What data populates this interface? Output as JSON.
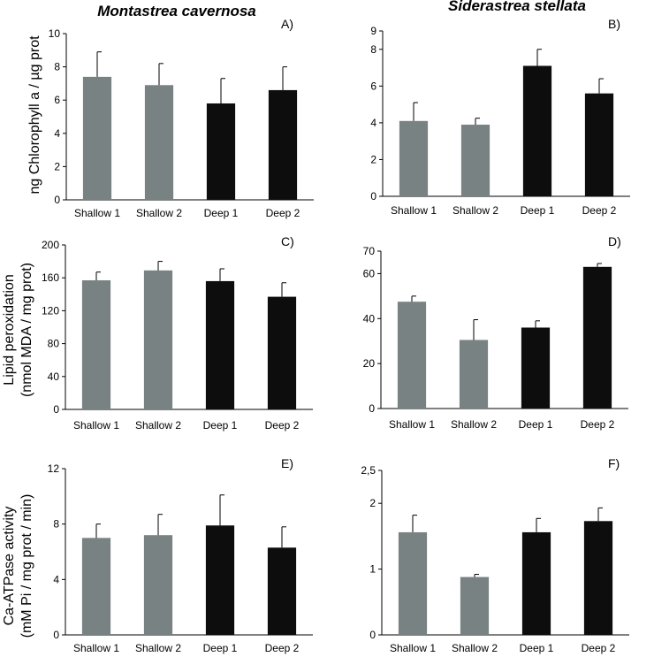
{
  "column_titles": [
    "Montastrea cavernosa",
    "Siderastrea stellata"
  ],
  "row_ylabels": [
    [
      "ng Chlorophyll a / µg prot"
    ],
    [
      "Lipid peroxidation",
      "(nmol MDA / mg prot)"
    ],
    [
      "Ca-ATPase activity",
      "(mM Pi / mg prot / min)"
    ]
  ],
  "colors": {
    "shallow": "#788282",
    "deep": "#0d0d0d",
    "axis": "#000000"
  },
  "chart_data": [
    {
      "type": "bar",
      "panel": "A)",
      "categories": [
        "Shallow 1",
        "Shallow 2",
        "Deep 1",
        "Deep 2"
      ],
      "values": [
        7.4,
        6.9,
        5.8,
        6.6
      ],
      "errors": [
        1.5,
        1.3,
        1.5,
        1.4
      ],
      "ylim": [
        0,
        10
      ],
      "yticks": [
        "0",
        "2",
        "4",
        "6",
        "8",
        "10"
      ],
      "ytick_values": [
        0,
        2,
        4,
        6,
        8,
        10
      ],
      "group": [
        "shallow",
        "shallow",
        "deep",
        "deep"
      ]
    },
    {
      "type": "bar",
      "panel": "B)",
      "categories": [
        "Shallow 1",
        "Shallow 2",
        "Deep 1",
        "Deep 2"
      ],
      "values": [
        4.1,
        3.9,
        7.1,
        5.6
      ],
      "errors": [
        1.0,
        0.35,
        0.9,
        0.8
      ],
      "ylim": [
        0,
        9
      ],
      "yticks": [
        "0",
        "2",
        "4",
        "6",
        "8",
        "9"
      ],
      "ytick_values": [
        0,
        2,
        4,
        6,
        8,
        9
      ],
      "group": [
        "shallow",
        "shallow",
        "deep",
        "deep"
      ]
    },
    {
      "type": "bar",
      "panel": "C)",
      "categories": [
        "Shallow 1",
        "Shallow 2",
        "Deep 1",
        "Deep 2"
      ],
      "values": [
        157,
        169,
        156,
        137
      ],
      "errors": [
        10,
        11,
        15,
        17
      ],
      "ylim": [
        0,
        200
      ],
      "yticks": [
        "0",
        "40",
        "80",
        "120",
        "160",
        "200"
      ],
      "ytick_values": [
        0,
        40,
        80,
        120,
        160,
        200
      ],
      "group": [
        "shallow",
        "shallow",
        "deep",
        "deep"
      ]
    },
    {
      "type": "bar",
      "panel": "D)",
      "categories": [
        "Shallow 1",
        "Shallow 2",
        "Deep 1",
        "Deep 2"
      ],
      "values": [
        47.5,
        30.5,
        36,
        63
      ],
      "errors": [
        2.5,
        9,
        3,
        1.5
      ],
      "ylim": [
        0,
        70
      ],
      "yticks": [
        "0",
        "20",
        "40",
        "60",
        "70"
      ],
      "ytick_values": [
        0,
        20,
        40,
        60,
        70
      ],
      "group": [
        "shallow",
        "shallow",
        "deep",
        "deep"
      ]
    },
    {
      "type": "bar",
      "panel": "E)",
      "categories": [
        "Shallow 1",
        "Shallow 2",
        "Deep 1",
        "Deep 2"
      ],
      "values": [
        7.0,
        7.2,
        7.9,
        6.3
      ],
      "errors": [
        1.0,
        1.5,
        2.2,
        1.5
      ],
      "ylim": [
        0,
        12
      ],
      "yticks": [
        "0",
        "4",
        "8",
        "12"
      ],
      "ytick_values": [
        0,
        4,
        8,
        12
      ],
      "group": [
        "shallow",
        "shallow",
        "deep",
        "deep"
      ]
    },
    {
      "type": "bar",
      "panel": "F)",
      "categories": [
        "Shallow 1",
        "Shallow 2",
        "Deep 1",
        "Deep 2"
      ],
      "values": [
        1.56,
        0.88,
        1.56,
        1.73
      ],
      "errors": [
        0.26,
        0.04,
        0.21,
        0.2
      ],
      "ylim": [
        0,
        2.5
      ],
      "yticks": [
        "0",
        "1",
        "2",
        "2,5"
      ],
      "ytick_values": [
        0,
        1,
        2,
        2.5
      ],
      "group": [
        "shallow",
        "shallow",
        "deep",
        "deep"
      ]
    }
  ]
}
